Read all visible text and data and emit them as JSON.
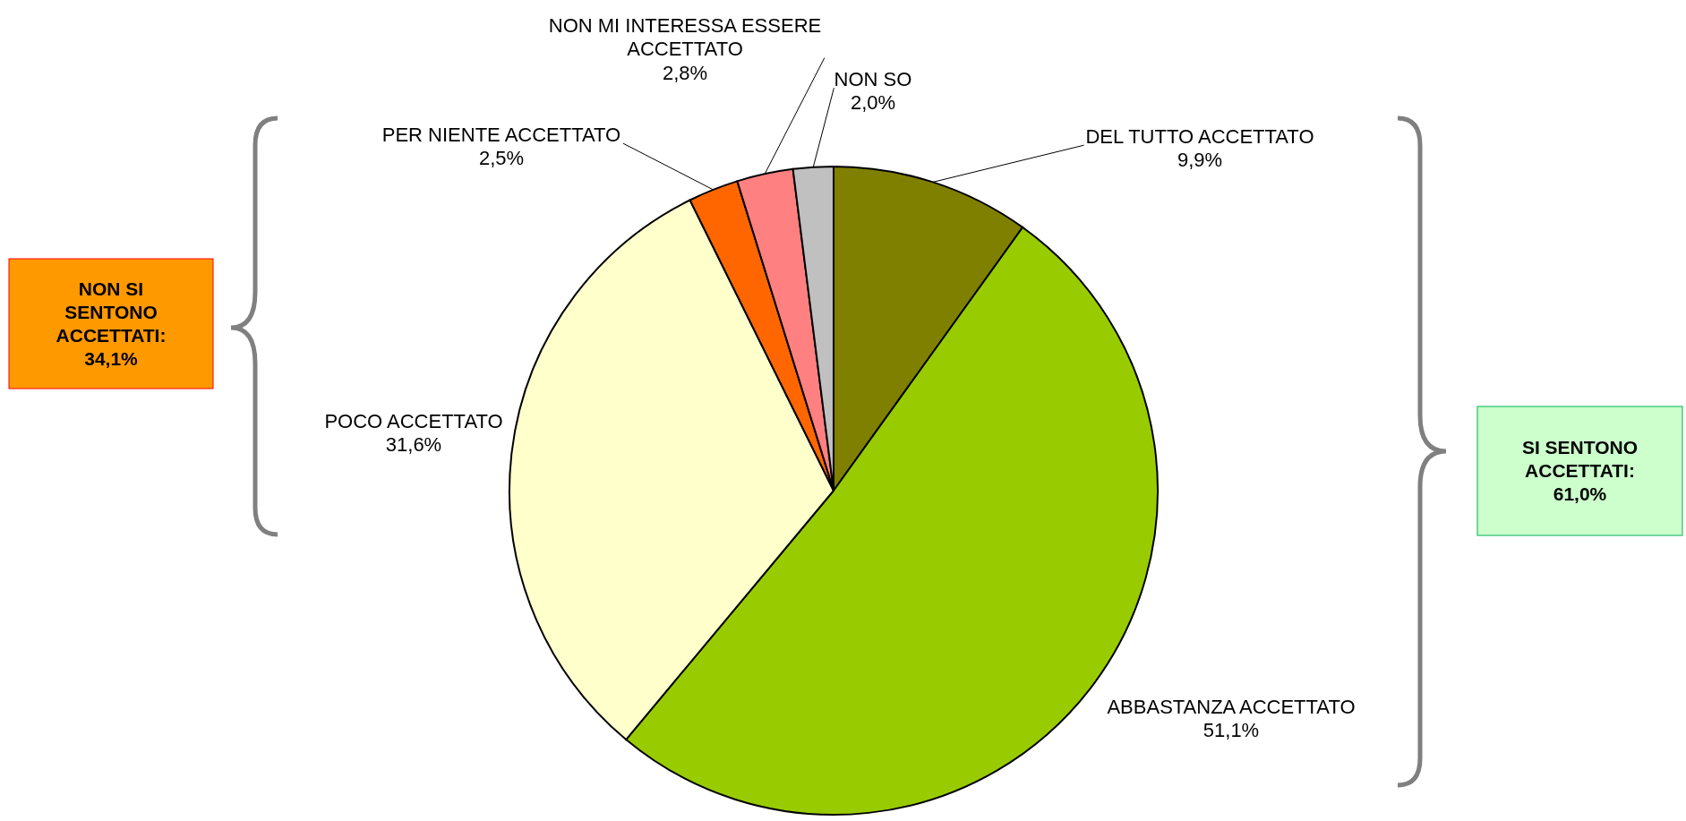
{
  "chart_data": {
    "type": "pie",
    "categories": [
      "DEL TUTTO ACCETTATO",
      "ABBASTANZA ACCETTATO",
      "POCO ACCETTATO",
      "PER NIENTE ACCETTATO",
      "NON MI INTERESSA ESSERE ACCETTATO",
      "NON SO"
    ],
    "values": [
      9.9,
      51.1,
      31.6,
      2.5,
      2.8,
      2.0
    ],
    "value_labels": [
      "9,9%",
      "51,1%",
      "31,6%",
      "2,5%",
      "2,8%",
      "2,0%"
    ],
    "colors": [
      "#808000",
      "#99cc00",
      "#ffffcc",
      "#ff6600",
      "#ff8080",
      "#c0c0c0"
    ],
    "annotations": [
      "NON SI SENTONO ACCETTATI: 34,1%",
      "SI SENTONO ACCETTATI: 61,0%"
    ]
  }
}
